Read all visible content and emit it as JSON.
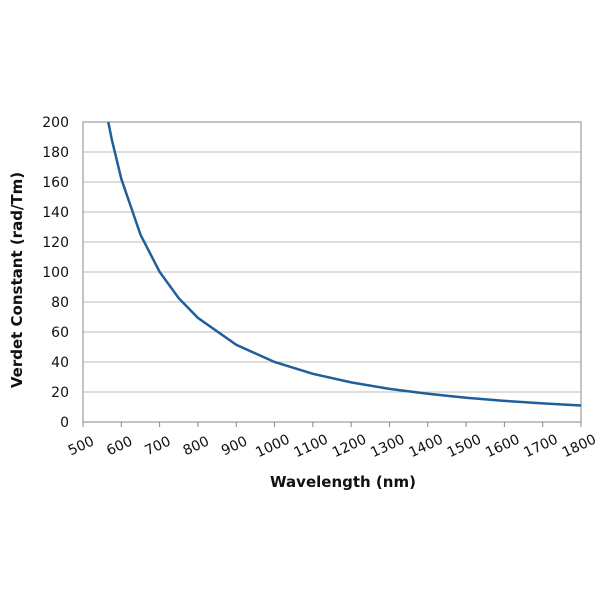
{
  "chart_data": {
    "type": "line",
    "x_label": "Wavelength (nm)",
    "y_label": "Verdet Constant (rad/Tm)",
    "xlim": [
      500,
      1800
    ],
    "xticks": [
      500,
      600,
      700,
      800,
      900,
      1000,
      1100,
      1200,
      1300,
      1400,
      1500,
      1600,
      1700,
      1800
    ],
    "ylim": [
      0,
      200
    ],
    "yticks": [
      0,
      20,
      40,
      60,
      80,
      100,
      120,
      140,
      160,
      180,
      200
    ],
    "grid": true,
    "series": [
      {
        "color": "#1f5f9a",
        "x": [
          566,
          575,
          600,
          650,
          700,
          750,
          800,
          900,
          1000,
          1100,
          1200,
          1300,
          1400,
          1500,
          1600,
          1700,
          1800
        ],
        "values": [
          200,
          188.5,
          162.1,
          124.9,
          100.1,
          82.5,
          69.4,
          51.5,
          40,
          32.1,
          26.4,
          22.1,
          18.8,
          16.2,
          14.1,
          12.4,
          11.0
        ]
      }
    ]
  }
}
